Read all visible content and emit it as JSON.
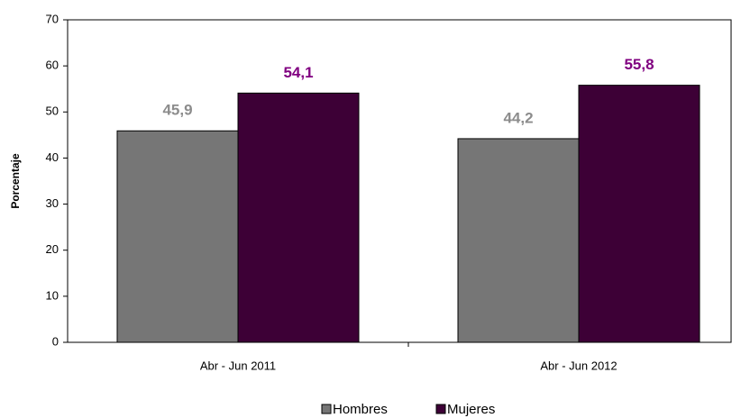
{
  "chart_data": {
    "type": "bar",
    "y_label": "Porcentaje",
    "categories": [
      "Abr - Jun 2011",
      "Abr - Jun 2012"
    ],
    "series": [
      {
        "name": "Hombres",
        "color": "#767676",
        "label_color": "#8c8c8c",
        "values": [
          45.9,
          44.2
        ],
        "value_labels": [
          "45,9",
          "44,2"
        ]
      },
      {
        "name": "Mujeres",
        "color": "#3d0036",
        "label_color": "#800080",
        "values": [
          54.1,
          55.8
        ],
        "value_labels": [
          "54,1",
          "55,8"
        ]
      }
    ],
    "ylim": [
      0,
      70
    ],
    "yticks": [
      0,
      10,
      20,
      30,
      40,
      50,
      60,
      70
    ],
    "grid": false
  }
}
